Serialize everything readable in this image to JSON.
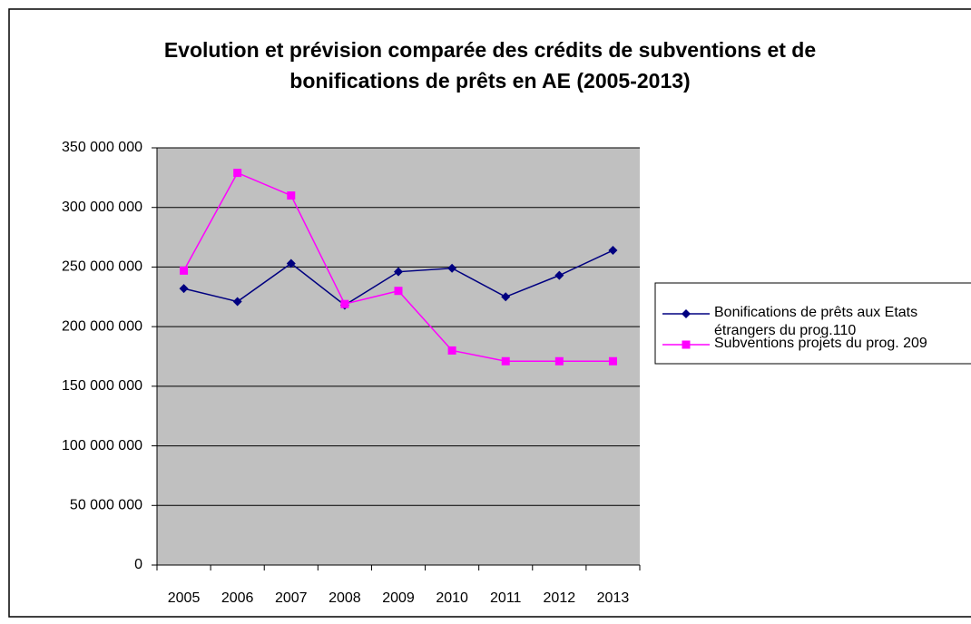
{
  "chart_data": {
    "type": "line",
    "title": "Evolution et prévision comparée des crédits de subventions et de bonifications de prêts en AE (2005-2013)",
    "categories": [
      "2005",
      "2006",
      "2007",
      "2008",
      "2009",
      "2010",
      "2011",
      "2012",
      "2013"
    ],
    "series": [
      {
        "name": "Bonifications de prêts aux Etats étrangers du prog.110",
        "color": "#000080",
        "marker": "diamond",
        "values": [
          232000000,
          221000000,
          253000000,
          218000000,
          246000000,
          249000000,
          225000000,
          243000000,
          264000000
        ]
      },
      {
        "name": "Subventions projets du prog. 209",
        "color": "#ff00ff",
        "marker": "square",
        "values": [
          247000000,
          329000000,
          310000000,
          219000000,
          230000000,
          180000000,
          171000000,
          171000000,
          171000000
        ]
      }
    ],
    "ylim": [
      0,
      350000000
    ],
    "yticks": [
      0,
      {
        "value": 50000000,
        "label": "50 000 000"
      },
      {
        "value": 100000000,
        "label": "100 000 000"
      },
      {
        "value": 150000000,
        "label": "150 000 000"
      },
      {
        "value": 200000000,
        "label": "200 000 000"
      },
      {
        "value": 250000000,
        "label": "250 000 000"
      },
      {
        "value": 300000000,
        "label": "300 000 000"
      },
      {
        "value": 350000000,
        "label": "350 000 000"
      }
    ],
    "grid": true,
    "legend": "right"
  }
}
